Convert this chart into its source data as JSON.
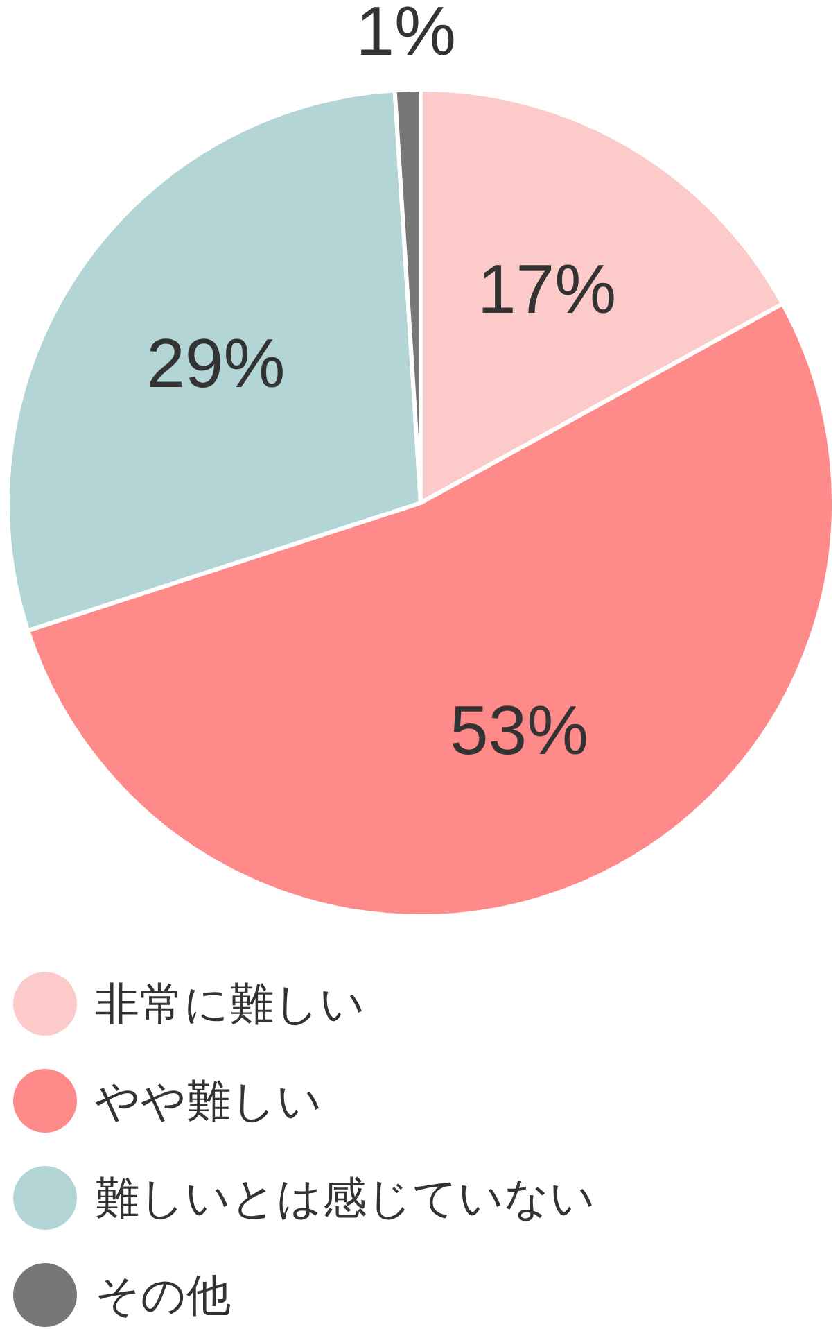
{
  "chart_data": {
    "type": "pie",
    "categories": [
      "非常に難しい",
      "やや難しい",
      "難しいとは感じていない",
      "その他"
    ],
    "values": [
      17,
      53,
      29,
      1
    ],
    "colors": [
      "#fdcaca",
      "#ff8a8a",
      "#b3d5d6",
      "#777777"
    ],
    "value_labels": [
      "17%",
      "53%",
      "29%",
      "1%"
    ],
    "legend": "bottom"
  }
}
